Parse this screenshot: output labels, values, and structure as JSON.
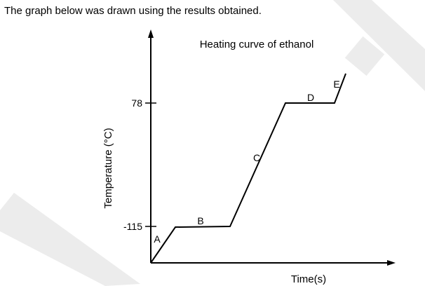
{
  "intro_text": "The graph below was drawn using the results obtained.",
  "chart_data": {
    "type": "line",
    "title": "Heating curve of ethanol",
    "xlabel": "Time(s)",
    "ylabel": "Temperature (°C)",
    "y_ticks": [
      {
        "value": -115,
        "label": "-115"
      },
      {
        "value": 78,
        "label": "78"
      }
    ],
    "segments": [
      {
        "label": "A",
        "phase": "heating"
      },
      {
        "label": "B",
        "phase": "plateau",
        "temperature": -115
      },
      {
        "label": "C",
        "phase": "heating"
      },
      {
        "label": "D",
        "phase": "plateau",
        "temperature": 78
      },
      {
        "label": "E",
        "phase": "heating"
      }
    ],
    "grid": false,
    "colors": {
      "line": "#000000",
      "axes": "#000000",
      "watermark": "#ececec"
    }
  }
}
